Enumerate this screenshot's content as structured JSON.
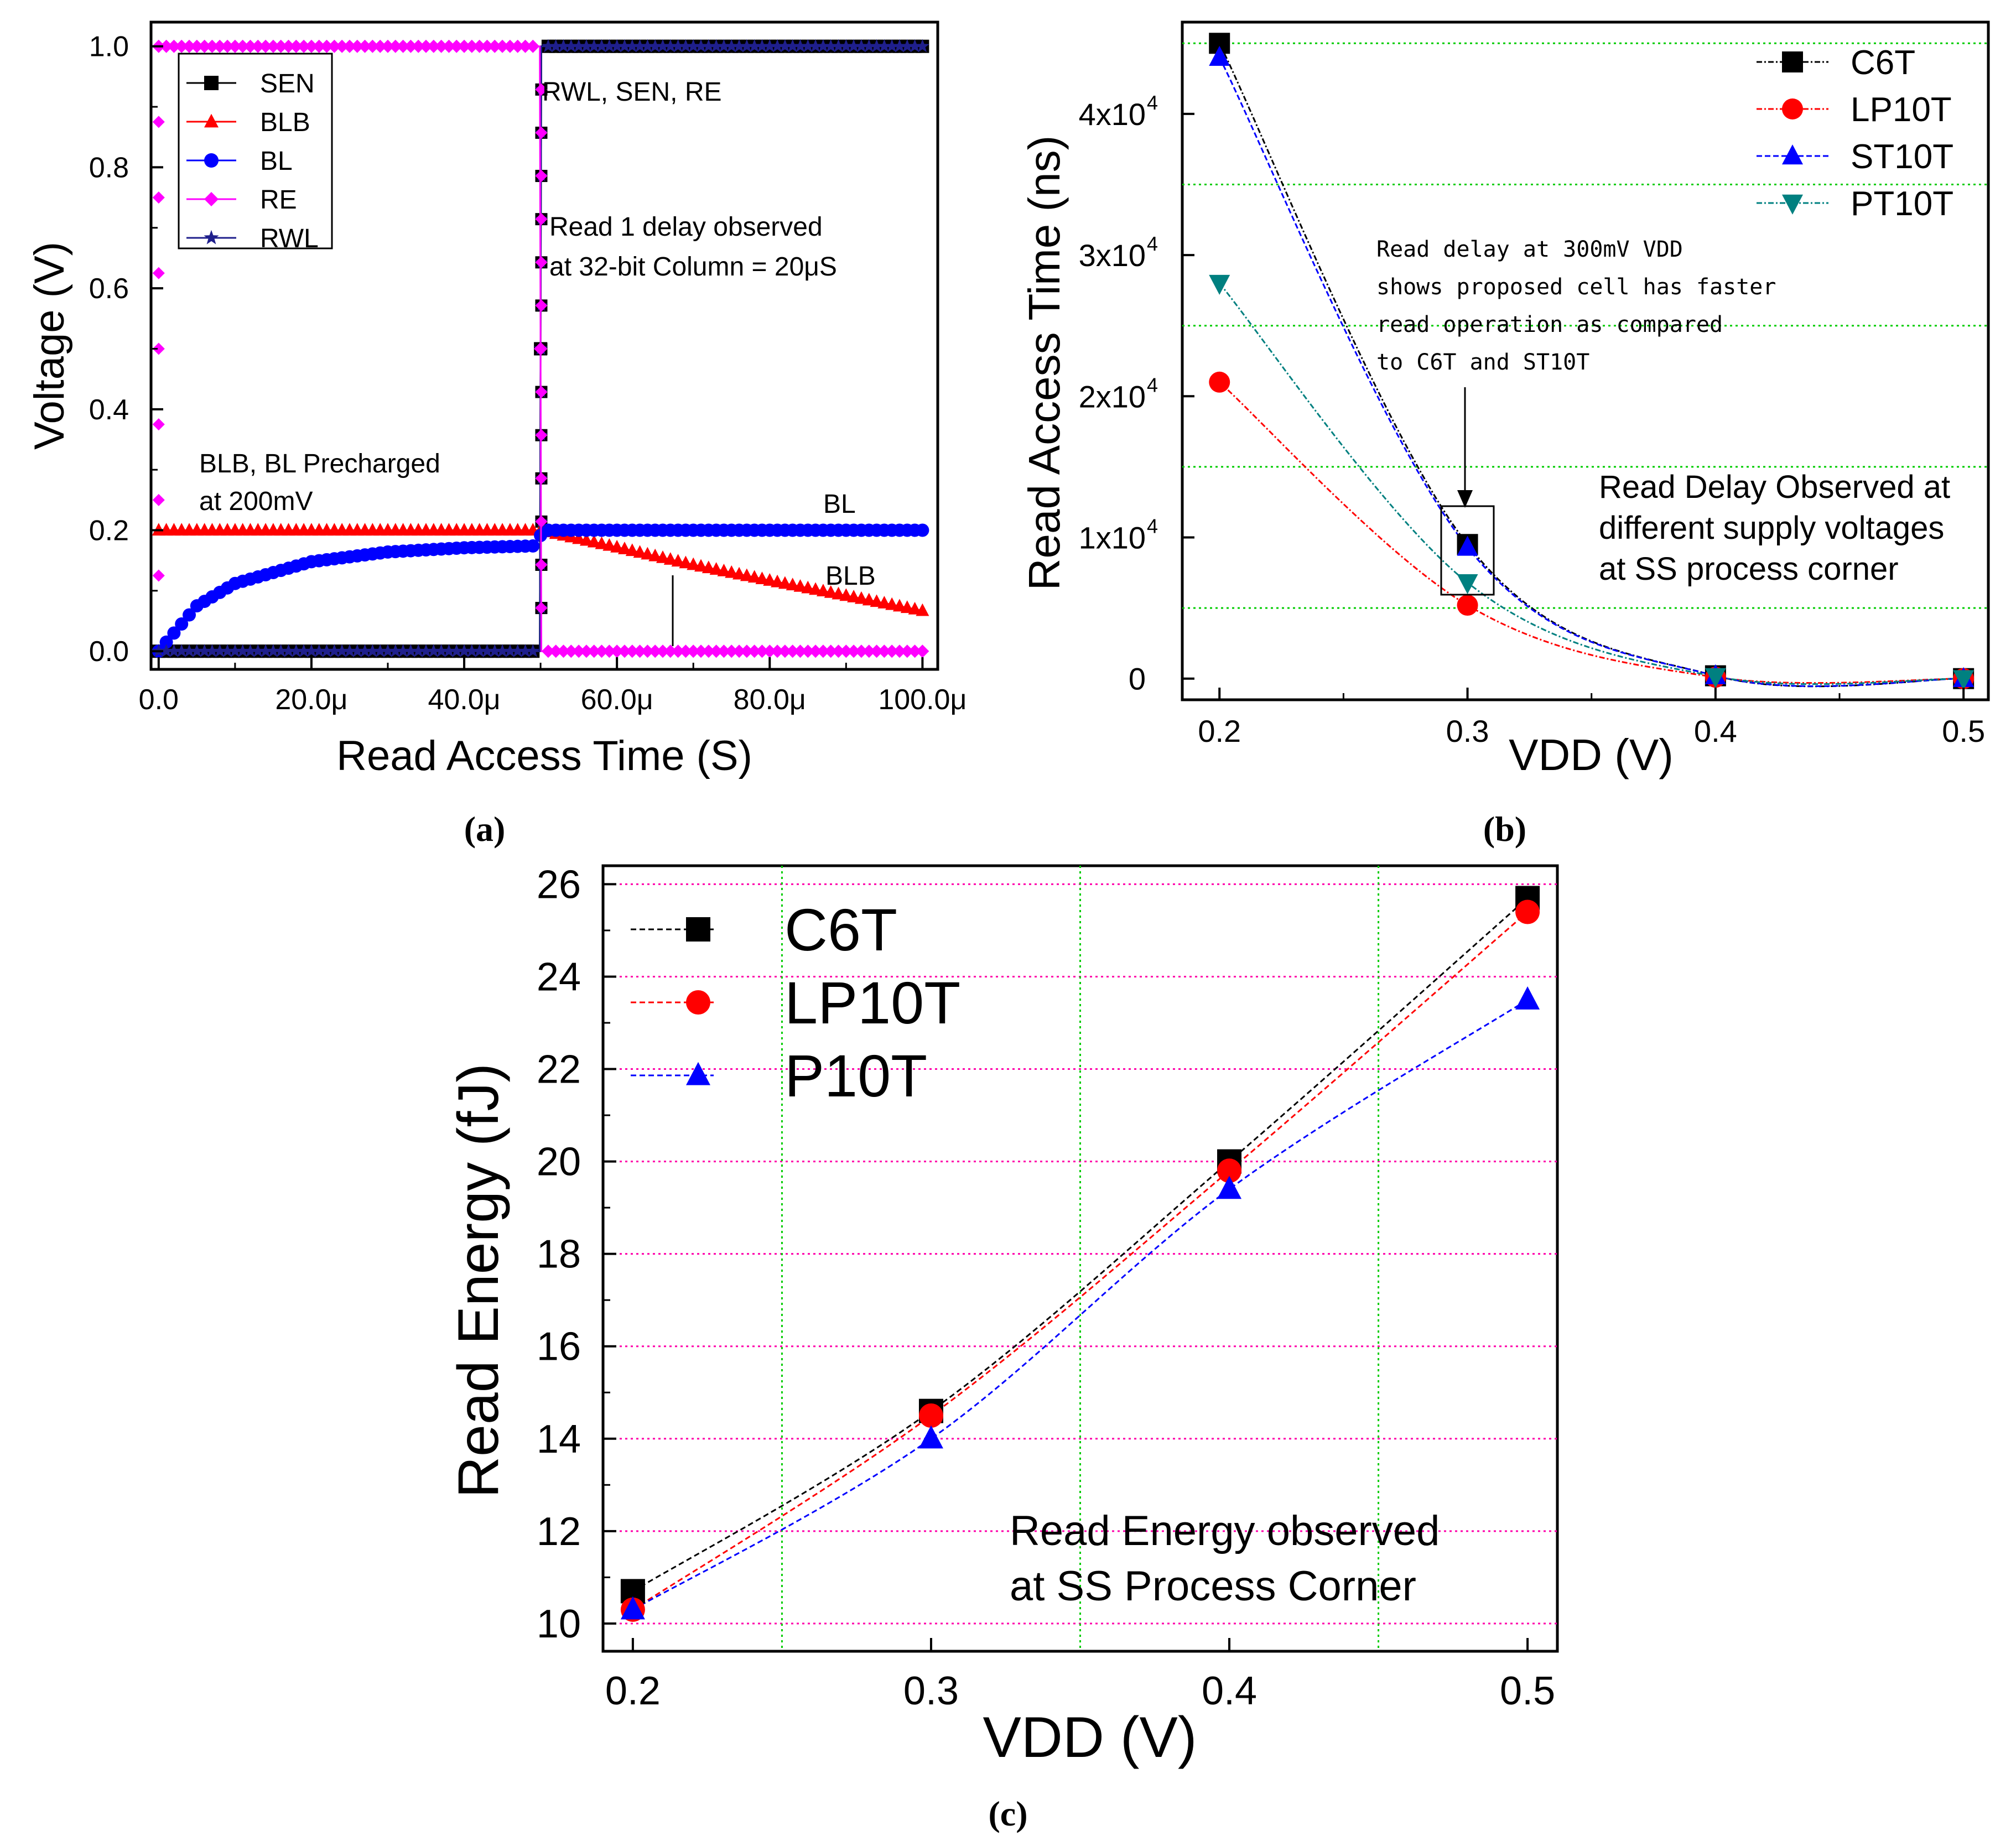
{
  "colors": {
    "black": "#000000",
    "red": "#ff0000",
    "blue": "#0000ff",
    "magenta": "#ff00ff",
    "navy": "#1f1f8c",
    "teal": "#008080",
    "grid_green": "#00cc00",
    "grid_pink": "#ff00aa"
  },
  "chart_data": [
    {
      "id": "a",
      "type": "line",
      "panel_label": "(a)",
      "xlabel": "Read Access Time (S)",
      "ylabel": "Voltage (V)",
      "xlim": [
        -1e-06,
        0.000102
      ],
      "ylim": [
        -0.03,
        1.04
      ],
      "xticks": [
        0,
        2e-05,
        4e-05,
        6e-05,
        8e-05,
        0.0001
      ],
      "xtick_labels": [
        "0.0",
        "20.0μ",
        "40.0μ",
        "60.0μ",
        "80.0μ",
        "100.0μ"
      ],
      "yticks": [
        0,
        0.2,
        0.4,
        0.6,
        0.8,
        1.0
      ],
      "ytick_labels": [
        "0.0",
        "0.2",
        "0.4",
        "0.6",
        "0.8",
        "1.0"
      ],
      "legend": [
        "SEN",
        "BLB",
        "BL",
        "RE",
        "RWL"
      ],
      "series": [
        {
          "name": "SEN",
          "color": "#000000",
          "marker": "square",
          "x": [
            0,
            4.99e-05,
            5.01e-05,
            0.0001
          ],
          "y": [
            0,
            0,
            1,
            1
          ]
        },
        {
          "name": "BLB",
          "color": "#ff0000",
          "marker": "triangle-up",
          "x": [
            0,
            5e-05,
            6e-05,
            7e-05,
            8e-05,
            9e-05,
            0.0001
          ],
          "y": [
            0.2,
            0.2,
            0.172,
            0.143,
            0.117,
            0.092,
            0.067
          ]
        },
        {
          "name": "BL",
          "color": "#0000ff",
          "marker": "circle",
          "x": [
            0,
            5e-06,
            1e-05,
            2e-05,
            3e-05,
            4e-05,
            4.9e-05,
            5.05e-05,
            0.0001
          ],
          "y": [
            0,
            0.075,
            0.112,
            0.148,
            0.164,
            0.171,
            0.174,
            0.2,
            0.2
          ]
        },
        {
          "name": "RE",
          "color": "#ff00ff",
          "marker": "diamond",
          "x": [
            0,
            4.99e-05,
            5.01e-05,
            0.0001
          ],
          "y": [
            1,
            1,
            0,
            0
          ]
        },
        {
          "name": "RWL",
          "color": "#1f1f8c",
          "marker": "star",
          "x": [
            0,
            4.99e-05,
            5.01e-05,
            0.0001
          ],
          "y": [
            0,
            0,
            1,
            1
          ]
        }
      ],
      "annotations": [
        "RWL, SEN, RE",
        "Read 1 delay observed",
        "at 32-bit Column = 20μS",
        "BLB, BL Precharged",
        "at 200mV",
        "BL",
        "BLB"
      ]
    },
    {
      "id": "b",
      "type": "line",
      "panel_label": "(b)",
      "xlabel": "VDD (V)",
      "ylabel": "Read Access Time (ns)",
      "xlim": [
        0.185,
        0.51
      ],
      "ylim": [
        -1500,
        46500
      ],
      "xticks": [
        0.2,
        0.3,
        0.4,
        0.5
      ],
      "xtick_labels": [
        "0.2",
        "0.3",
        "0.4",
        "0.5"
      ],
      "yticks": [
        0,
        10000,
        20000,
        30000,
        40000
      ],
      "ytick_labels": [
        "0",
        "1x10",
        "2x10",
        "3x10",
        "4x10"
      ],
      "ytick_exponent": "4",
      "grid_y": [
        5000,
        15000,
        25000,
        35000,
        45000
      ],
      "x": [
        0.2,
        0.3,
        0.4,
        0.5
      ],
      "series": [
        {
          "name": "C6T",
          "color": "#000000",
          "marker": "square",
          "values": [
            45000,
            9500,
            200,
            0
          ]
        },
        {
          "name": "LP10T",
          "color": "#ff0000",
          "marker": "circle",
          "values": [
            21000,
            5200,
            100,
            0
          ]
        },
        {
          "name": "ST10T",
          "color": "#0000ff",
          "marker": "triangle-up",
          "values": [
            44000,
            9300,
            200,
            0
          ]
        },
        {
          "name": "PT10T",
          "color": "#008080",
          "marker": "triangle-down",
          "values": [
            28000,
            6800,
            150,
            0
          ]
        }
      ],
      "annotations": [
        "Read delay at 300mV VDD",
        "shows proposed cell has faster",
        "read operation as compared",
        "to C6T and ST10T",
        "Read Delay Observed at",
        "different supply voltages",
        "at SS process corner"
      ]
    },
    {
      "id": "c",
      "type": "line",
      "panel_label": "(c)",
      "xlabel": "VDD (V)",
      "ylabel": "Read Energy (fJ)",
      "xlim": [
        0.19,
        0.51
      ],
      "ylim": [
        9.4,
        26.4
      ],
      "xticks": [
        0.2,
        0.3,
        0.4,
        0.5
      ],
      "xtick_labels": [
        "0.2",
        "0.3",
        "0.4",
        "0.5"
      ],
      "yticks": [
        10,
        12,
        14,
        16,
        18,
        20,
        22,
        24,
        26
      ],
      "ytick_labels": [
        "10",
        "12",
        "14",
        "16",
        "18",
        "20",
        "22",
        "24",
        "26"
      ],
      "grid_x": [
        0.25,
        0.35,
        0.45
      ],
      "grid_y": [
        10,
        12,
        14,
        16,
        18,
        20,
        22,
        24,
        26
      ],
      "x": [
        0.2,
        0.3,
        0.4,
        0.5
      ],
      "series": [
        {
          "name": "C6T",
          "color": "#000000",
          "marker": "square",
          "values": [
            10.7,
            14.6,
            20.0,
            25.7
          ]
        },
        {
          "name": "LP10T",
          "color": "#ff0000",
          "marker": "circle",
          "values": [
            10.3,
            14.5,
            19.8,
            25.4
          ]
        },
        {
          "name": "P10T",
          "color": "#0000ff",
          "marker": "triangle-up",
          "values": [
            10.3,
            14.0,
            19.4,
            23.5
          ]
        }
      ],
      "annotations": [
        "Read Energy observed",
        "at SS Process Corner"
      ]
    }
  ]
}
